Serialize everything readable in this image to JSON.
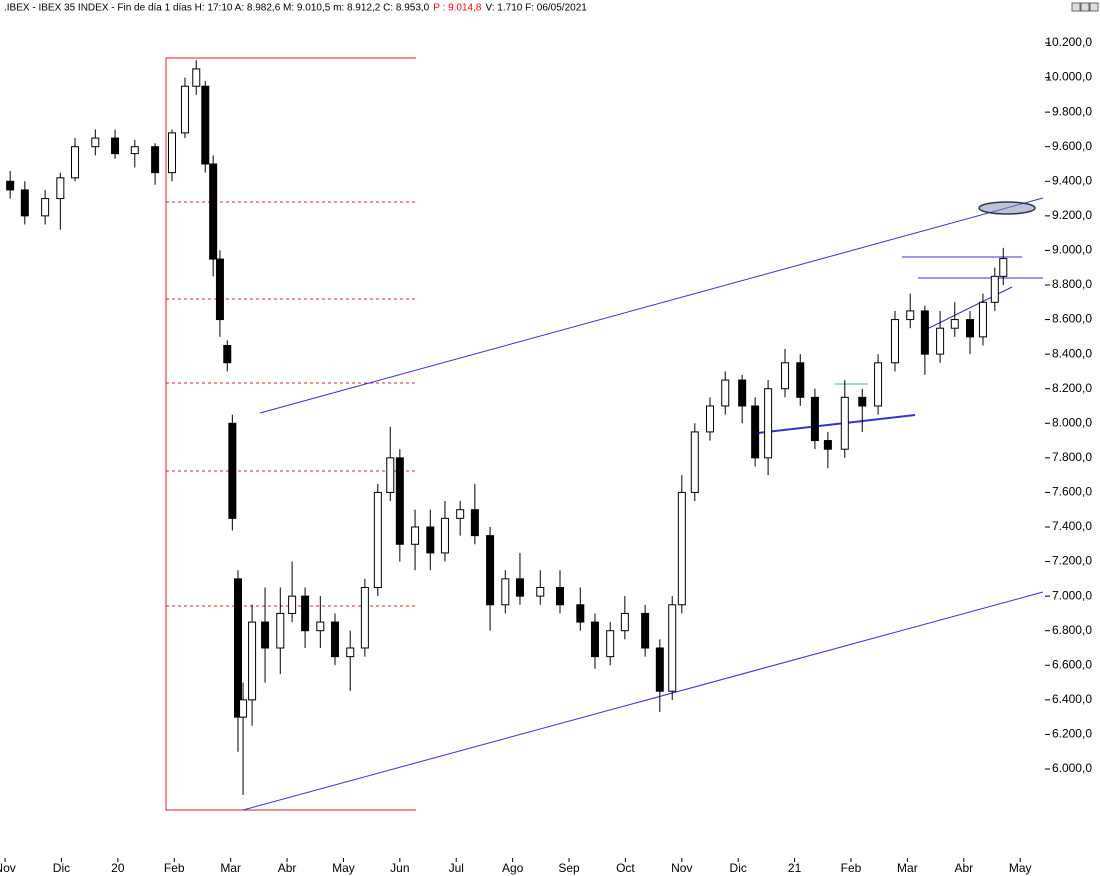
{
  "chart_data": {
    "type": "candlestick",
    "title": ".IBEX - IBEX 35 INDEX - Fin de día 1 días H: 17:10 A: 8.982,6 M: 9.010,5 m: 8.912,2 C: 8.953,0",
    "annotations": [
      "P : 9.014,8",
      "V: 1.710 F: 06/05/2021"
    ],
    "annotation_colors": [
      "#ff0000",
      "#000000"
    ],
    "up_color": "#ffffff",
    "down_color": "#000000",
    "ylim": [
      5485,
      10362
    ],
    "xlim": [
      -0.09,
      18.44
    ],
    "yticks": [
      {
        "value": 6000,
        "label": "6.000,0"
      },
      {
        "value": 6200,
        "label": "6.200,0"
      },
      {
        "value": 6400,
        "label": "6.400,0"
      },
      {
        "value": 6600,
        "label": "6.600,0"
      },
      {
        "value": 6800,
        "label": "6.800,0"
      },
      {
        "value": 7000,
        "label": "7.000,0"
      },
      {
        "value": 7200,
        "label": "7.200,0"
      },
      {
        "value": 7400,
        "label": "7.400,0"
      },
      {
        "value": 7600,
        "label": "7.600,0"
      },
      {
        "value": 7800,
        "label": "7.800,0"
      },
      {
        "value": 8000,
        "label": "8.000,0"
      },
      {
        "value": 8200,
        "label": "8.200,0"
      },
      {
        "value": 8400,
        "label": "8.400,0"
      },
      {
        "value": 8600,
        "label": "8.600,0"
      },
      {
        "value": 8800,
        "label": "8.800,0"
      },
      {
        "value": 9000,
        "label": "9.000,0"
      },
      {
        "value": 9200,
        "label": "9.200,0"
      },
      {
        "value": 9400,
        "label": "9.400,0"
      },
      {
        "value": 9600,
        "label": "9.600,0"
      },
      {
        "value": 9800,
        "label": "9.800,0"
      },
      {
        "value": 10000,
        "label": "10.000,0"
      },
      {
        "value": 10200,
        "label": "10.200,0"
      }
    ],
    "xticks": [
      {
        "value": 0,
        "label": "Nov"
      },
      {
        "value": 1,
        "label": "Dic"
      },
      {
        "value": 2,
        "label": "20"
      },
      {
        "value": 3,
        "label": "Feb"
      },
      {
        "value": 4,
        "label": "Mar"
      },
      {
        "value": 5,
        "label": "Abr"
      },
      {
        "value": 6,
        "label": "May"
      },
      {
        "value": 7,
        "label": "Jun"
      },
      {
        "value": 8,
        "label": "Jul"
      },
      {
        "value": 9,
        "label": "Ago"
      },
      {
        "value": 10,
        "label": "Sep"
      },
      {
        "value": 11,
        "label": "Oct"
      },
      {
        "value": 12,
        "label": "Nov"
      },
      {
        "value": 13,
        "label": "Dic"
      },
      {
        "value": 14,
        "label": "21"
      },
      {
        "value": 15,
        "label": "Feb"
      },
      {
        "value": 16,
        "label": "Mar"
      },
      {
        "value": 17,
        "label": "Abr"
      },
      {
        "value": 18,
        "label": "May"
      }
    ],
    "x": [
      0.09,
      0.35,
      0.71,
      0.98,
      1.24,
      1.6,
      1.95,
      2.3,
      2.66,
      2.96,
      3.19,
      3.39,
      3.55,
      3.69,
      3.81,
      3.94,
      4.03,
      4.13,
      4.22,
      4.38,
      4.61,
      4.88,
      5.09,
      5.32,
      5.59,
      5.85,
      6.12,
      6.38,
      6.61,
      6.83,
      7.0,
      7.27,
      7.54,
      7.8,
      8.07,
      8.33,
      8.6,
      8.87,
      9.13,
      9.49,
      9.84,
      10.2,
      10.46,
      10.73,
      10.99,
      11.35,
      11.61,
      11.83,
      12.0,
      12.23,
      12.5,
      12.77,
      13.07,
      13.3,
      13.53,
      13.83,
      14.1,
      14.36,
      14.59,
      14.89,
      15.2,
      15.48,
      15.78,
      16.05,
      16.31,
      16.58,
      16.84,
      17.11,
      17.34,
      17.55,
      17.7
    ],
    "open": [
      9400,
      9350,
      9200,
      9300,
      9420,
      9600,
      9650,
      9560,
      9600,
      9450,
      9680,
      9950,
      9950,
      9500,
      8950,
      8450,
      8000,
      7100,
      6300,
      6400,
      6850,
      6700,
      6900,
      7000,
      6800,
      6850,
      6650,
      6700,
      7050,
      7600,
      7800,
      7300,
      7400,
      7250,
      7450,
      7500,
      7350,
      6950,
      7100,
      7000,
      7050,
      6950,
      6850,
      6650,
      6800,
      6900,
      6700,
      6450,
      6950,
      7600,
      7950,
      8100,
      8250,
      8100,
      7800,
      8200,
      8350,
      8150,
      7900,
      7850,
      8150,
      8100,
      8350,
      8600,
      8650,
      8400,
      8550,
      8600,
      8500,
      8700,
      8850
    ],
    "high": [
      9460,
      9400,
      9350,
      9450,
      9650,
      9700,
      9700,
      9640,
      9620,
      9700,
      10000,
      10100,
      9980,
      9550,
      9000,
      8480,
      8050,
      7150,
      6500,
      6950,
      7050,
      7050,
      7200,
      7050,
      7000,
      6900,
      6800,
      7100,
      7650,
      7980,
      7850,
      7500,
      7500,
      7550,
      7550,
      7650,
      7400,
      7150,
      7250,
      7150,
      7150,
      7050,
      6900,
      6850,
      7000,
      6950,
      6750,
      7000,
      7700,
      8000,
      8150,
      8300,
      8280,
      8150,
      8250,
      8430,
      8400,
      8200,
      7950,
      8250,
      8200,
      8400,
      8650,
      8750,
      8680,
      8650,
      8700,
      8650,
      8750,
      8900,
      9015
    ],
    "low": [
      9300,
      9150,
      9150,
      9120,
      9400,
      9550,
      9530,
      9480,
      9380,
      9400,
      9650,
      9900,
      9450,
      8850,
      8500,
      8300,
      7380,
      6100,
      5850,
      6250,
      6500,
      6550,
      6850,
      6700,
      6700,
      6600,
      6450,
      6650,
      7000,
      7550,
      7200,
      7150,
      7150,
      7200,
      7350,
      7300,
      6800,
      6900,
      6950,
      6950,
      6900,
      6800,
      6580,
      6600,
      6750,
      6650,
      6330,
      6400,
      6900,
      7550,
      7900,
      8050,
      8000,
      7750,
      7700,
      8150,
      8100,
      7850,
      7740,
      7800,
      7950,
      8050,
      8300,
      8550,
      8280,
      8350,
      8500,
      8400,
      8450,
      8650,
      8800
    ],
    "close": [
      9350,
      9200,
      9300,
      9420,
      9600,
      9650,
      9560,
      9600,
      9450,
      9680,
      9950,
      10050,
      9500,
      8950,
      8600,
      8350,
      7450,
      6300,
      6400,
      6850,
      6700,
      6900,
      7000,
      6800,
      6850,
      6650,
      6700,
      7050,
      7600,
      7800,
      7300,
      7400,
      7250,
      7450,
      7500,
      7350,
      6950,
      7100,
      7000,
      7050,
      6950,
      6850,
      6650,
      6800,
      6900,
      6700,
      6450,
      6950,
      7600,
      7950,
      8100,
      8250,
      8100,
      7800,
      8200,
      8350,
      8150,
      7900,
      7850,
      8150,
      8100,
      8350,
      8600,
      8650,
      8400,
      8550,
      8600,
      8500,
      8700,
      8850,
      8953
    ]
  }
}
